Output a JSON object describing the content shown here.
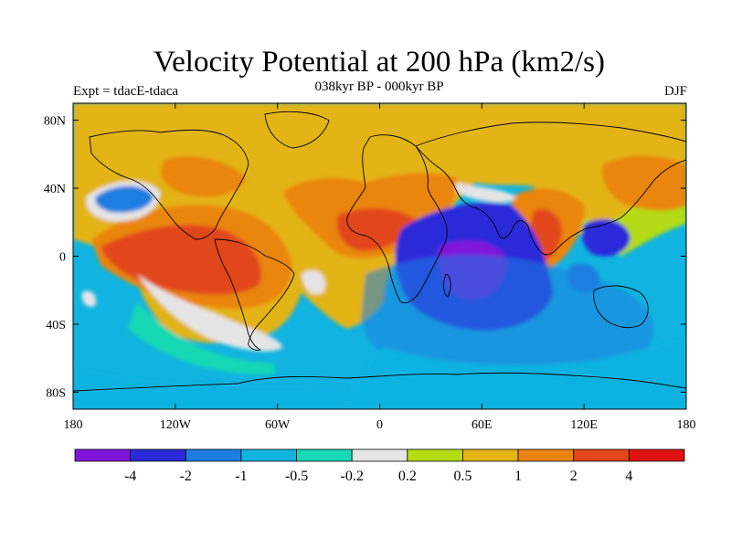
{
  "title": "Velocity Potential at 200 hPa (km2/s)",
  "subtitle": "038kyr BP - 000kyr BP",
  "left_label": "Expt = tdacE-tdaca",
  "right_label": "DJF",
  "map": {
    "projection": "cylindrical-equidistant",
    "lon_range": [
      -180,
      180
    ],
    "lat_range": [
      -90,
      90
    ],
    "y_ticks": [
      {
        "lat": 80,
        "label": "80N"
      },
      {
        "lat": 40,
        "label": "40N"
      },
      {
        "lat": 0,
        "label": "0"
      },
      {
        "lat": -40,
        "label": "40S"
      },
      {
        "lat": -80,
        "label": "80S"
      }
    ],
    "x_ticks": [
      {
        "lon": -180,
        "label": "180"
      },
      {
        "lon": -120,
        "label": "120W"
      },
      {
        "lon": -60,
        "label": "60W"
      },
      {
        "lon": 0,
        "label": "0"
      },
      {
        "lon": 60,
        "label": "60E"
      },
      {
        "lon": 120,
        "label": "120E"
      },
      {
        "lon": 180,
        "label": "180"
      }
    ]
  },
  "colorbar": {
    "colors": [
      "#7f14d9",
      "#2a2ad9",
      "#1d7ee0",
      "#11b3e0",
      "#17d8b4",
      "#e5e5e5",
      "#b4db12",
      "#e3b412",
      "#ea850f",
      "#e2461a",
      "#e01111"
    ],
    "labels": [
      "-4",
      "-2",
      "-1",
      "-0.5",
      "-0.2",
      "0.2",
      "0.5",
      "1",
      "2",
      "4"
    ]
  }
}
